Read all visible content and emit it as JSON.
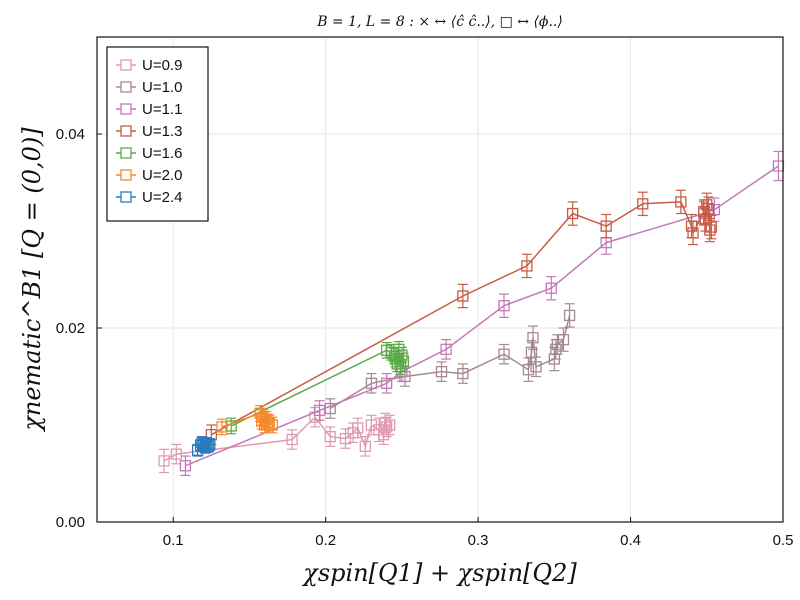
{
  "chart_data": {
    "type": "scatter",
    "title": "B = 1, L = 8 :    ×  ↔  ⟨ĉ ĉ..⟩,        □  ↔  ⟨ϕ..⟩",
    "xlabel": "χspin[Q1] +  χspin[Q2]",
    "ylabel": "χnematic^B1 [Q = (0,0)]",
    "xlim": [
      0.05,
      0.5
    ],
    "ylim": [
      0.0,
      0.05
    ],
    "xticks": [
      0.1,
      0.2,
      0.3,
      0.4,
      0.5
    ],
    "xtick_labels": [
      "0.1",
      "0.2",
      "0.3",
      "0.4",
      "0.5"
    ],
    "yticks": [
      0.0,
      0.02,
      0.04
    ],
    "ytick_labels": [
      "0.00",
      "0.02",
      "0.04"
    ],
    "grid": true,
    "legend_position": "top-left",
    "marker": "open-square",
    "series": [
      {
        "name": "U=0.9",
        "color": "#e09aae",
        "points": [
          [
            0.094,
            0.0063
          ],
          [
            0.102,
            0.007
          ],
          [
            0.178,
            0.0085
          ],
          [
            0.193,
            0.0108
          ],
          [
            0.203,
            0.0088
          ],
          [
            0.213,
            0.0086
          ],
          [
            0.218,
            0.0092
          ],
          [
            0.221,
            0.0097
          ],
          [
            0.226,
            0.0078
          ],
          [
            0.23,
            0.01
          ],
          [
            0.235,
            0.0095
          ],
          [
            0.238,
            0.009
          ],
          [
            0.239,
            0.0102
          ],
          [
            0.24,
            0.0098
          ],
          [
            0.242,
            0.01
          ]
        ],
        "errors": [
          0.0012,
          0.001,
          0.001,
          0.001,
          0.001,
          0.001,
          0.001,
          0.001,
          0.001,
          0.001,
          0.0012,
          0.001,
          0.001,
          0.001,
          0.001
        ]
      },
      {
        "name": "U=1.0",
        "color": "#a58a8f",
        "points": [
          [
            0.203,
            0.0117
          ],
          [
            0.23,
            0.0143
          ],
          [
            0.252,
            0.015
          ],
          [
            0.276,
            0.0155
          ],
          [
            0.29,
            0.0153
          ],
          [
            0.317,
            0.0173
          ],
          [
            0.333,
            0.0157
          ],
          [
            0.335,
            0.0175
          ],
          [
            0.336,
            0.019
          ],
          [
            0.338,
            0.016
          ],
          [
            0.35,
            0.0168
          ],
          [
            0.351,
            0.0178
          ],
          [
            0.352,
            0.0183
          ],
          [
            0.356,
            0.0188
          ],
          [
            0.36,
            0.0213
          ]
        ],
        "errors": [
          0.001,
          0.001,
          0.001,
          0.001,
          0.001,
          0.001,
          0.0012,
          0.0012,
          0.0012,
          0.001,
          0.0012,
          0.001,
          0.001,
          0.0012,
          0.0012
        ]
      },
      {
        "name": "U=1.1",
        "color": "#c379b8",
        "points": [
          [
            0.108,
            0.0058
          ],
          [
            0.196,
            0.0115
          ],
          [
            0.24,
            0.0143
          ],
          [
            0.25,
            0.0155
          ],
          [
            0.279,
            0.0178
          ],
          [
            0.317,
            0.0223
          ],
          [
            0.348,
            0.0241
          ],
          [
            0.384,
            0.0288
          ],
          [
            0.448,
            0.0318
          ],
          [
            0.455,
            0.0322
          ],
          [
            0.497,
            0.0367
          ]
        ],
        "errors": [
          0.001,
          0.001,
          0.001,
          0.001,
          0.001,
          0.0012,
          0.0012,
          0.0012,
          0.0012,
          0.0012,
          0.0015
        ]
      },
      {
        "name": "U=1.3",
        "color": "#c95b45",
        "points": [
          [
            0.125,
            0.009
          ],
          [
            0.29,
            0.0233
          ],
          [
            0.332,
            0.0264
          ],
          [
            0.362,
            0.0318
          ],
          [
            0.384,
            0.0305
          ],
          [
            0.408,
            0.0328
          ],
          [
            0.433,
            0.033
          ],
          [
            0.44,
            0.0305
          ],
          [
            0.441,
            0.0298
          ],
          [
            0.448,
            0.032
          ],
          [
            0.449,
            0.0312
          ],
          [
            0.45,
            0.0327
          ],
          [
            0.451,
            0.0323
          ],
          [
            0.452,
            0.0301
          ],
          [
            0.453,
            0.0304
          ]
        ],
        "errors": [
          0.001,
          0.0012,
          0.0012,
          0.0012,
          0.0012,
          0.0012,
          0.0012,
          0.0012,
          0.0012,
          0.0012,
          0.0012,
          0.0012,
          0.0012,
          0.0012,
          0.0012
        ]
      },
      {
        "name": "U=1.6",
        "color": "#5aaa48",
        "points": [
          [
            0.138,
            0.0099
          ],
          [
            0.24,
            0.0177
          ],
          [
            0.243,
            0.0175
          ],
          [
            0.245,
            0.0171
          ],
          [
            0.246,
            0.0168
          ],
          [
            0.247,
            0.0163
          ],
          [
            0.248,
            0.0178
          ],
          [
            0.249,
            0.016
          ],
          [
            0.25,
            0.0172
          ],
          [
            0.251,
            0.0166
          ]
        ],
        "errors": [
          0.0008,
          0.0008,
          0.0008,
          0.0008,
          0.0008,
          0.0008,
          0.0008,
          0.0008,
          0.0008,
          0.0008
        ]
      },
      {
        "name": "U=2.0",
        "color": "#f4892a",
        "points": [
          [
            0.132,
            0.0098
          ],
          [
            0.157,
            0.0112
          ],
          [
            0.158,
            0.0104
          ],
          [
            0.159,
            0.0108
          ],
          [
            0.16,
            0.01
          ],
          [
            0.161,
            0.0106
          ],
          [
            0.162,
            0.0103
          ],
          [
            0.163,
            0.0102
          ],
          [
            0.165,
            0.01
          ]
        ],
        "errors": [
          0.0008,
          0.0008,
          0.0008,
          0.0008,
          0.0008,
          0.0008,
          0.0008,
          0.0008,
          0.0008
        ]
      },
      {
        "name": "U=2.4",
        "color": "#2a7abf",
        "points": [
          [
            0.116,
            0.0074
          ],
          [
            0.118,
            0.0079
          ],
          [
            0.119,
            0.0082
          ],
          [
            0.12,
            0.008
          ],
          [
            0.121,
            0.0077
          ],
          [
            0.122,
            0.0081
          ],
          [
            0.123,
            0.0078
          ],
          [
            0.124,
            0.008
          ]
        ],
        "errors": [
          0.0006,
          0.0006,
          0.0006,
          0.0006,
          0.0006,
          0.0006,
          0.0006,
          0.0006
        ]
      }
    ]
  }
}
